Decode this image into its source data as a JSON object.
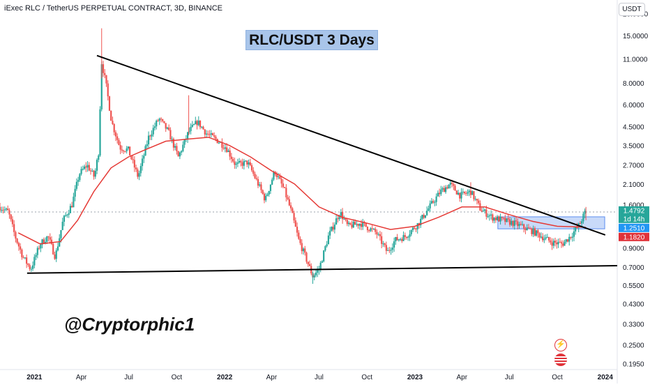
{
  "header": {
    "symbol_line": "iExec RLC / TetherUS PERPETUAL CONTRACT, 3D, BINANCE",
    "currency_button": "USDT"
  },
  "annotations": {
    "title": "RLC/USDT 3 Days",
    "handle": "@Cryptorphic1"
  },
  "icons": {
    "flash": "lightning-icon",
    "flag": "us-flag-icon"
  },
  "price_labels": [
    {
      "text": "1.4792",
      "color": "#26a69a"
    },
    {
      "text": "1d 14h",
      "color": "#26a69a"
    },
    {
      "text": "1.2510",
      "color": "#2196f3"
    },
    {
      "text": "1.1820",
      "color": "#e0333a"
    }
  ],
  "chart_data": {
    "type": "candlestick",
    "title": "RLC/USDT 3 Days",
    "y_scale": "log",
    "y_ticks": [
      "20.0000",
      "15.0000",
      "11.0000",
      "8.0000",
      "6.0000",
      "4.5000",
      "3.5000",
      "2.7000",
      "2.1000",
      "1.6000",
      "0.9000",
      "0.7000",
      "0.5500",
      "0.4300",
      "0.3300",
      "0.2500",
      "0.1950"
    ],
    "y_tick_values": [
      20,
      15,
      11,
      8,
      6,
      4.5,
      3.5,
      2.7,
      2.1,
      1.6,
      0.9,
      0.7,
      0.55,
      0.43,
      0.33,
      0.25,
      0.195
    ],
    "x_ticks": [
      "2021",
      "Apr",
      "Jul",
      "Oct",
      "2022",
      "Apr",
      "Jul",
      "Oct",
      "2023",
      "Apr",
      "Jul",
      "Oct",
      "2024"
    ],
    "x_tick_dates": [
      "2021-01-01",
      "2021-04-01",
      "2021-07-01",
      "2021-10-01",
      "2022-01-01",
      "2022-04-01",
      "2022-07-01",
      "2022-10-01",
      "2023-01-01",
      "2023-04-01",
      "2023-07-01",
      "2023-10-01",
      "2024-01-01"
    ],
    "x_range": [
      "2020-10-27",
      "2024-01-24"
    ],
    "y_range": [
      0.18,
      24.0
    ],
    "last_price": 1.4792,
    "ma_value": 1.182,
    "zone_value": 1.251,
    "colors": {
      "up": "#26a69a",
      "down": "#ef5350",
      "ma": "#e53935",
      "ma_fast": "#26c6da",
      "accent": "#2196f3"
    },
    "trendlines": [
      {
        "name": "descending-resistance",
        "from": {
          "date": "2021-05-01",
          "price": 11.5
        },
        "to": {
          "date": "2024-01-01",
          "price": 1.07
        }
      },
      {
        "name": "ascending-support",
        "from": {
          "date": "2020-12-18",
          "price": 0.645
        },
        "to": {
          "date": "2024-01-24",
          "price": 0.712
        }
      }
    ],
    "zone": {
      "from": "2023-06-09",
      "to": "2023-12-31",
      "low": 1.16,
      "high": 1.36
    },
    "path_points": [
      [
        "2020-10-27",
        1.55
      ],
      [
        "2020-11-12",
        1.45
      ],
      [
        "2020-11-25",
        1.05
      ],
      [
        "2020-12-10",
        0.8
      ],
      [
        "2020-12-25",
        0.68
      ],
      [
        "2021-01-12",
        0.95
      ],
      [
        "2021-01-27",
        1.05
      ],
      [
        "2021-02-10",
        0.8
      ],
      [
        "2021-02-25",
        1.3
      ],
      [
        "2021-03-14",
        1.6
      ],
      [
        "2021-03-28",
        2.4
      ],
      [
        "2021-04-12",
        2.7
      ],
      [
        "2021-04-26",
        2.3
      ],
      [
        "2021-05-04",
        3.2
      ],
      [
        "2021-05-10",
        10.5
      ],
      [
        "2021-05-18",
        8.0
      ],
      [
        "2021-05-29",
        4.8
      ],
      [
        "2021-06-14",
        3.4
      ],
      [
        "2021-06-30",
        3.3
      ],
      [
        "2021-07-19",
        2.3
      ],
      [
        "2021-08-08",
        3.9
      ],
      [
        "2021-08-28",
        5.0
      ],
      [
        "2021-09-15",
        4.2
      ],
      [
        "2021-10-04",
        3.0
      ],
      [
        "2021-10-24",
        4.2
      ],
      [
        "2021-11-10",
        4.8
      ],
      [
        "2021-11-27",
        4.1
      ],
      [
        "2021-12-15",
        3.8
      ],
      [
        "2022-01-04",
        3.4
      ],
      [
        "2022-01-22",
        2.7
      ],
      [
        "2022-02-14",
        2.8
      ],
      [
        "2022-03-03",
        2.2
      ],
      [
        "2022-03-20",
        1.7
      ],
      [
        "2022-04-07",
        2.5
      ],
      [
        "2022-04-25",
        1.95
      ],
      [
        "2022-05-09",
        1.45
      ],
      [
        "2022-05-23",
        1.0
      ],
      [
        "2022-06-05",
        0.8
      ],
      [
        "2022-06-19",
        0.62
      ],
      [
        "2022-07-01",
        0.68
      ],
      [
        "2022-07-19",
        1.05
      ],
      [
        "2022-08-10",
        1.45
      ],
      [
        "2022-08-25",
        1.2
      ],
      [
        "2022-09-19",
        1.25
      ],
      [
        "2022-10-19",
        1.1
      ],
      [
        "2022-11-09",
        0.85
      ],
      [
        "2022-11-24",
        1.0
      ],
      [
        "2022-12-14",
        1.05
      ],
      [
        "2023-01-08",
        1.25
      ],
      [
        "2023-01-29",
        1.55
      ],
      [
        "2023-02-19",
        1.9
      ],
      [
        "2023-03-09",
        2.1
      ],
      [
        "2023-03-29",
        1.8
      ],
      [
        "2023-04-18",
        1.9
      ],
      [
        "2023-05-07",
        1.5
      ],
      [
        "2023-05-29",
        1.35
      ],
      [
        "2023-06-18",
        1.3
      ],
      [
        "2023-07-10",
        1.25
      ],
      [
        "2023-07-29",
        1.18
      ],
      [
        "2023-08-16",
        1.12
      ],
      [
        "2023-09-01",
        1.05
      ],
      [
        "2023-09-21",
        0.97
      ],
      [
        "2023-10-11",
        0.95
      ],
      [
        "2023-10-26",
        1.05
      ],
      [
        "2023-11-12",
        1.22
      ],
      [
        "2023-11-25",
        1.4792
      ]
    ],
    "ma_points": [
      [
        "2020-12-01",
        1.1
      ],
      [
        "2021-01-12",
        0.95
      ],
      [
        "2021-02-20",
        0.98
      ],
      [
        "2021-03-25",
        1.3
      ],
      [
        "2021-04-25",
        1.9
      ],
      [
        "2021-05-28",
        2.6
      ],
      [
        "2021-06-30",
        3.0
      ],
      [
        "2021-08-01",
        3.3
      ],
      [
        "2021-09-10",
        3.7
      ],
      [
        "2021-10-20",
        3.8
      ],
      [
        "2021-12-01",
        3.9
      ],
      [
        "2022-01-10",
        3.5
      ],
      [
        "2022-02-20",
        3.0
      ],
      [
        "2022-04-01",
        2.5
      ],
      [
        "2022-05-15",
        2.1
      ],
      [
        "2022-07-01",
        1.55
      ],
      [
        "2022-08-15",
        1.35
      ],
      [
        "2022-10-01",
        1.25
      ],
      [
        "2022-11-15",
        1.15
      ],
      [
        "2023-01-01",
        1.2
      ],
      [
        "2023-02-15",
        1.35
      ],
      [
        "2023-04-01",
        1.55
      ],
      [
        "2023-05-15",
        1.55
      ],
      [
        "2023-07-01",
        1.4
      ],
      [
        "2023-08-15",
        1.28
      ],
      [
        "2023-10-01",
        1.2
      ],
      [
        "2023-11-10",
        1.19
      ],
      [
        "2023-11-25",
        1.182
      ]
    ]
  }
}
